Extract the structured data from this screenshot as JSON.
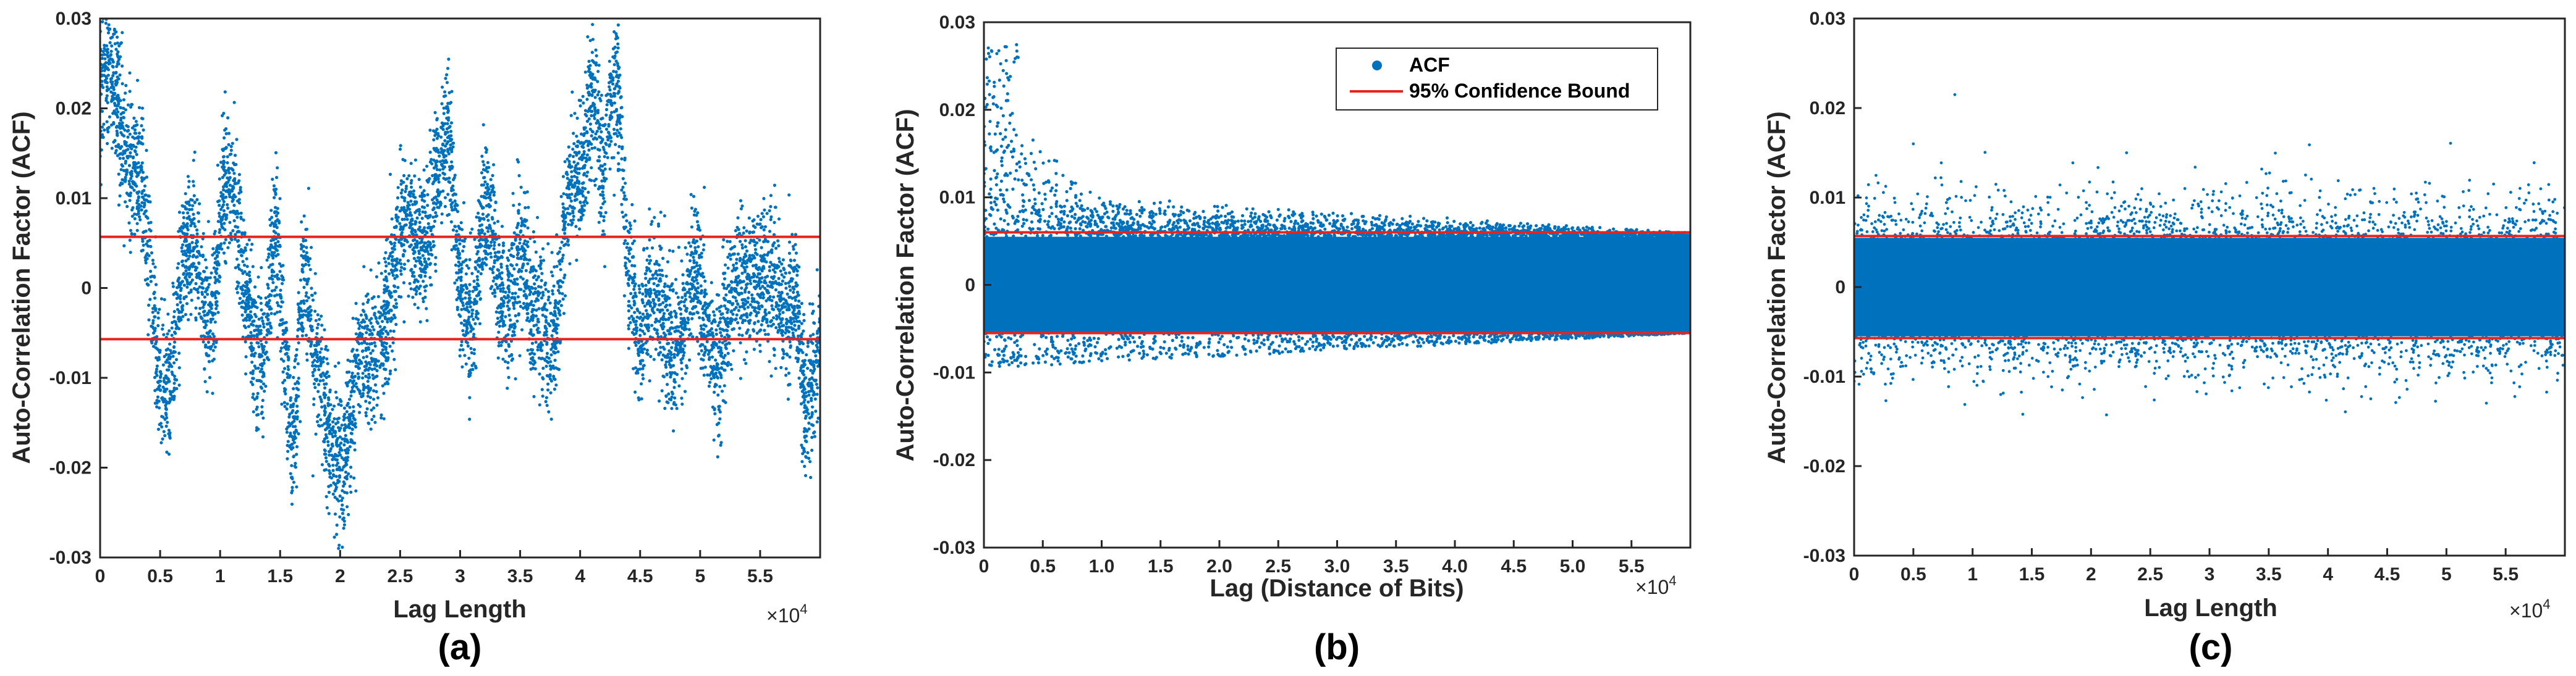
{
  "colors": {
    "acf": "#0072BD",
    "bound": "#E8231D",
    "axis": "#262626"
  },
  "chart_data": [
    {
      "id": "a",
      "type": "scatter",
      "caption": "(a)",
      "xlabel": "Lag Length",
      "ylabel": "Auto-Correlation Factor (ACF)",
      "x_multiplier": "×10",
      "x_multiplier_exp": "4",
      "xlim": [
        0,
        6
      ],
      "ylim": [
        -0.03,
        0.03
      ],
      "x_ticks": [
        0,
        0.5,
        1,
        1.5,
        2,
        2.5,
        3,
        3.5,
        4,
        4.5,
        5,
        5.5
      ],
      "x_tick_labels": [
        "0",
        "0.5",
        "1",
        "1.5",
        "2",
        "2.5",
        "3",
        "3.5",
        "4",
        "4.5",
        "5",
        "5.5"
      ],
      "y_ticks": [
        -0.03,
        -0.02,
        -0.01,
        0,
        0.01,
        0.02,
        0.03
      ],
      "y_tick_labels": [
        "-0.03",
        "-0.02",
        "-0.01",
        "0",
        "0.01",
        "0.02",
        "0.03"
      ],
      "confidence_bounds": [
        0.0057,
        -0.0057
      ],
      "series_acf_envelope": {
        "x": [
          0,
          0.3,
          0.5,
          0.7,
          0.9,
          1.05,
          1.2,
          1.35,
          1.45,
          1.6,
          1.7,
          1.8,
          1.9,
          2.0,
          2.2,
          2.4,
          2.6,
          2.8,
          2.9,
          3.0,
          3.1,
          3.2,
          3.35,
          3.5,
          3.6,
          3.7,
          3.8,
          3.9,
          4.0,
          4.1,
          4.2,
          4.3,
          4.4,
          4.5,
          4.7,
          4.9,
          5.1,
          5.3,
          5.5,
          5.6,
          5.7,
          5.8,
          5.9,
          6.0
        ],
        "center": [
          0.022,
          0.016,
          -0.012,
          0.003,
          -0.002,
          0.012,
          0.0,
          -0.005,
          0.002,
          -0.015,
          0.004,
          -0.01,
          -0.016,
          -0.017,
          -0.01,
          0.0,
          0.005,
          0.011,
          0.013,
          0.004,
          -0.002,
          0.005,
          0.0,
          0.004,
          -0.006,
          -0.003,
          -0.002,
          0.007,
          0.012,
          0.025,
          0.012,
          0.02,
          0.005,
          -0.003,
          -0.004,
          -0.002,
          -0.005,
          -0.002,
          0.004,
          0.0,
          -0.006,
          0.0,
          -0.012,
          -0.008
        ],
        "spread": 0.0075
      }
    },
    {
      "id": "b",
      "type": "scatter",
      "caption": "(b)",
      "xlabel": "Lag (Distance of Bits)",
      "ylabel": "Auto-Correlation Factor (ACF)",
      "x_multiplier": "×10",
      "x_multiplier_exp": "4",
      "xlim": [
        0,
        6
      ],
      "ylim": [
        -0.03,
        0.03
      ],
      "x_ticks": [
        0,
        0.5,
        1,
        1.5,
        2,
        2.5,
        3,
        3.5,
        4,
        4.5,
        5,
        5.5
      ],
      "x_tick_labels": [
        "0",
        "0.5",
        "1.0",
        "1.5",
        "2.0",
        "2.5",
        "3.0",
        "3.5",
        "4.0",
        "4.5",
        "5.0",
        "5.5"
      ],
      "y_ticks": [
        -0.03,
        -0.02,
        -0.01,
        0,
        0.01,
        0.02,
        0.03
      ],
      "y_tick_labels": [
        "-0.03",
        "-0.02",
        "-0.01",
        "0",
        "0.01",
        "0.02",
        "0.03"
      ],
      "confidence_bounds": [
        0.006,
        -0.0055
      ],
      "legend": {
        "position": "top-right",
        "entries": [
          "ACF",
          "95% Confidence Bound"
        ]
      },
      "series_acf_envelope": {
        "band": 0.0055,
        "tail_start": 0.011,
        "tail_end": 0.006,
        "peak": 0.028
      }
    },
    {
      "id": "c",
      "type": "scatter",
      "caption": "(c)",
      "xlabel": "Lag Length",
      "ylabel": "Auto-Correlation Factor (ACF)",
      "x_multiplier": "×10",
      "x_multiplier_exp": "4",
      "xlim": [
        0,
        6
      ],
      "ylim": [
        -0.03,
        0.03
      ],
      "x_ticks": [
        0,
        0.5,
        1,
        1.5,
        2,
        2.5,
        3,
        3.5,
        4,
        4.5,
        5,
        5.5
      ],
      "x_tick_labels": [
        "0",
        "0.5",
        "1",
        "1.5",
        "2",
        "2.5",
        "3",
        "3.5",
        "4",
        "4.5",
        "5",
        "5.5"
      ],
      "y_ticks": [
        -0.03,
        -0.02,
        -0.01,
        0,
        0.01,
        0.02,
        0.03
      ],
      "y_tick_labels": [
        "-0.03",
        "-0.02",
        "-0.01",
        "0",
        "0.01",
        "0.02",
        "0.03"
      ],
      "confidence_bounds": [
        0.0057,
        -0.0057
      ],
      "series_acf_envelope": {
        "band": 0.0055,
        "max_outlier": 0.0215
      }
    }
  ]
}
